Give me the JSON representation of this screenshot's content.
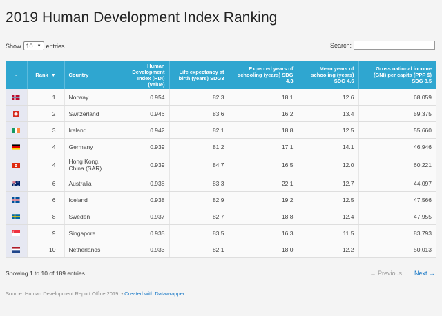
{
  "title": "2019 Human Development Index Ranking",
  "controls": {
    "show_label": "Show",
    "entries_value": "10",
    "entries_label": "entries",
    "search_label": "Search:",
    "search_value": ""
  },
  "table": {
    "headers": {
      "flag": "-",
      "rank": "Rank",
      "rank_sort": "▼",
      "country": "Country",
      "hdi": "Human Development Index (HDI) (value)",
      "life": "Life expectancy at birth (years) SDG3",
      "expected": "Expected years of schooling (years) SDG 4.3",
      "mean": "Mean years of schooling (years) SDG 4.6",
      "gni": "Gross national income (GNI) per capita (PPP $) SDG 8.5"
    },
    "rows": [
      {
        "flag": "norway",
        "rank": "1",
        "country": "Norway",
        "hdi": "0.954",
        "life": "82.3",
        "expected": "18.1",
        "mean": "12.6",
        "gni": "68,059"
      },
      {
        "flag": "switzerland",
        "rank": "2",
        "country": "Switzerland",
        "hdi": "0.946",
        "life": "83.6",
        "expected": "16.2",
        "mean": "13.4",
        "gni": "59,375"
      },
      {
        "flag": "ireland",
        "rank": "3",
        "country": "Ireland",
        "hdi": "0.942",
        "life": "82.1",
        "expected": "18.8",
        "mean": "12.5",
        "gni": "55,660"
      },
      {
        "flag": "germany",
        "rank": "4",
        "country": "Germany",
        "hdi": "0.939",
        "life": "81.2",
        "expected": "17.1",
        "mean": "14.1",
        "gni": "46,946"
      },
      {
        "flag": "hongkong",
        "rank": "4",
        "country": "Hong Kong, China (SAR)",
        "hdi": "0.939",
        "life": "84.7",
        "expected": "16.5",
        "mean": "12.0",
        "gni": "60,221"
      },
      {
        "flag": "australia",
        "rank": "6",
        "country": "Australia",
        "hdi": "0.938",
        "life": "83.3",
        "expected": "22.1",
        "mean": "12.7",
        "gni": "44,097"
      },
      {
        "flag": "iceland",
        "rank": "6",
        "country": "Iceland",
        "hdi": "0.938",
        "life": "82.9",
        "expected": "19.2",
        "mean": "12.5",
        "gni": "47,566"
      },
      {
        "flag": "sweden",
        "rank": "8",
        "country": "Sweden",
        "hdi": "0.937",
        "life": "82.7",
        "expected": "18.8",
        "mean": "12.4",
        "gni": "47,955"
      },
      {
        "flag": "singapore",
        "rank": "9",
        "country": "Singapore",
        "hdi": "0.935",
        "life": "83.5",
        "expected": "16.3",
        "mean": "11.5",
        "gni": "83,793"
      },
      {
        "flag": "netherlands",
        "rank": "10",
        "country": "Netherlands",
        "hdi": "0.933",
        "life": "82.1",
        "expected": "18.0",
        "mean": "12.2",
        "gni": "50,013"
      }
    ]
  },
  "footer": {
    "info": "Showing 1 to 10 of 189 entries",
    "previous": "← Previous",
    "next": "Next →"
  },
  "source": {
    "text": "Source: Human Development Report Office 2019. • ",
    "credit": "Created with Datawrapper"
  },
  "colors": {
    "header_bg": "#2fa6d0",
    "link": "#1a79c6"
  }
}
